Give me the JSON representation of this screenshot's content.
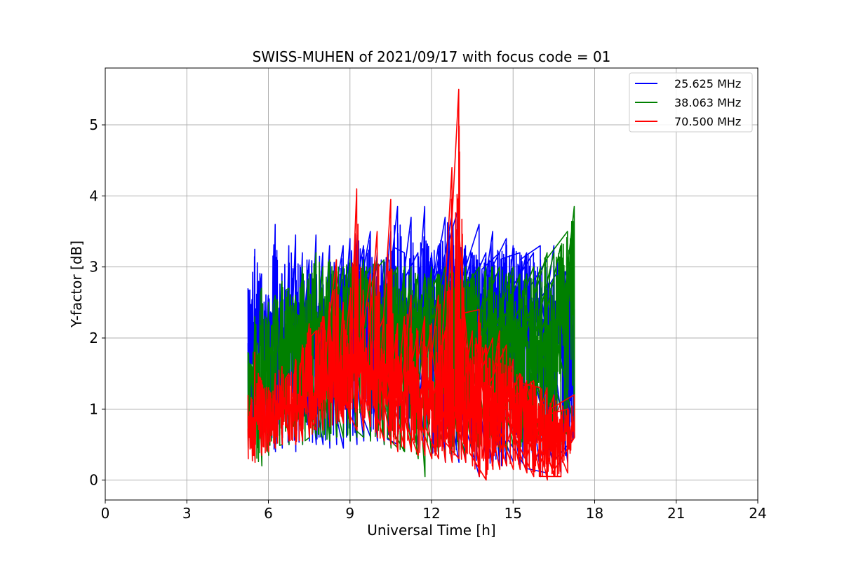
{
  "chart_data": {
    "type": "line",
    "title": "SWISS-MUHEN of 2021/09/17 with focus code = 01",
    "xlabel": "Universal Time [h]",
    "ylabel": "Y-factor [dB]",
    "xlim": [
      0,
      24
    ],
    "ylim": [
      -0.28,
      5.8
    ],
    "x_ticks": [
      0,
      3,
      6,
      9,
      12,
      15,
      18,
      21,
      24
    ],
    "y_ticks": [
      0,
      1,
      2,
      3,
      4,
      5
    ],
    "grid": true,
    "legend_position": "top-right",
    "series": [
      {
        "name": "25.625 MHz",
        "color": "#0000ff",
        "x": [
          5.25,
          5.5,
          5.75,
          6.0,
          6.25,
          6.5,
          6.75,
          7.0,
          7.25,
          7.5,
          7.75,
          8.0,
          8.25,
          8.5,
          8.75,
          9.0,
          9.25,
          9.5,
          9.75,
          10.0,
          10.25,
          10.5,
          10.75,
          11.0,
          11.25,
          11.5,
          11.75,
          12.0,
          12.25,
          12.5,
          12.75,
          13.0,
          13.25,
          13.5,
          13.75,
          14.0,
          14.25,
          14.5,
          14.75,
          15.0,
          15.25,
          15.5,
          15.75,
          16.0,
          16.25,
          16.5,
          16.75,
          17.0,
          17.25
        ],
        "y_min": [
          0.55,
          0.5,
          0.45,
          0.5,
          0.4,
          0.45,
          0.5,
          0.4,
          0.5,
          0.55,
          0.5,
          0.5,
          0.45,
          0.5,
          0.45,
          0.55,
          0.5,
          0.55,
          0.6,
          0.55,
          0.5,
          0.5,
          0.5,
          0.45,
          0.5,
          0.45,
          0.4,
          0.35,
          0.35,
          0.25,
          0.3,
          0.25,
          0.25,
          0.3,
          0.05,
          0.2,
          0.25,
          0.2,
          0.2,
          0.25,
          0.2,
          0.15,
          0.2,
          0.05,
          0.1,
          0.15,
          0.1,
          0.25,
          0.6
        ],
        "y_max": [
          2.7,
          3.25,
          2.9,
          2.6,
          3.6,
          2.9,
          3.3,
          3.45,
          3.2,
          3.1,
          3.45,
          3.2,
          3.3,
          3.1,
          3.3,
          3.4,
          3.45,
          3.3,
          3.5,
          3.2,
          3.1,
          3.5,
          3.85,
          3.2,
          3.7,
          3.2,
          3.85,
          3.2,
          3.3,
          3.7,
          3.75,
          3.85,
          3.3,
          3.2,
          3.6,
          3.2,
          3.5,
          3.2,
          3.4,
          3.3,
          3.2,
          3.2,
          3.2,
          3.3,
          3.1,
          3.3,
          3.0,
          3.0,
          2.4
        ],
        "y_base": [
          2.3,
          2.3,
          2.2,
          2.1,
          2.1,
          2.0,
          2.1,
          2.2,
          2.2,
          2.2,
          2.3,
          2.3,
          2.4,
          2.4,
          2.4,
          2.4,
          2.5,
          2.5,
          2.5,
          2.5,
          2.5,
          2.5,
          2.5,
          2.5,
          2.5,
          2.5,
          2.5,
          2.5,
          2.5,
          2.6,
          2.6,
          2.6,
          2.6,
          2.6,
          2.6,
          2.6,
          2.6,
          2.6,
          2.6,
          2.6,
          2.6,
          2.5,
          2.5,
          2.4,
          2.3,
          2.2,
          2.1,
          2.0,
          2.2
        ]
      },
      {
        "name": "38.063 MHz",
        "color": "#008000",
        "x": [
          5.25,
          5.5,
          5.75,
          6.0,
          6.25,
          6.5,
          6.75,
          7.0,
          7.25,
          7.5,
          7.75,
          8.0,
          8.25,
          8.5,
          8.75,
          9.0,
          9.25,
          9.5,
          9.75,
          10.0,
          10.25,
          10.5,
          10.75,
          11.0,
          11.25,
          11.5,
          11.75,
          12.0,
          12.25,
          12.5,
          12.75,
          13.0,
          13.25,
          13.5,
          13.75,
          14.0,
          14.25,
          14.5,
          14.75,
          15.0,
          15.25,
          15.5,
          15.75,
          16.0,
          16.25,
          16.5,
          16.75,
          17.0,
          17.25
        ],
        "y_min": [
          0.45,
          0.3,
          0.2,
          0.35,
          0.45,
          0.5,
          0.5,
          0.55,
          0.5,
          0.6,
          0.6,
          0.6,
          0.55,
          0.6,
          0.6,
          0.55,
          0.6,
          0.6,
          0.55,
          0.6,
          0.5,
          0.45,
          0.45,
          0.4,
          0.45,
          0.3,
          0.05,
          0.3,
          0.35,
          0.35,
          0.35,
          0.4,
          0.35,
          0.35,
          0.4,
          0.45,
          0.45,
          0.4,
          0.4,
          0.45,
          0.45,
          0.5,
          0.4,
          0.45,
          0.4,
          0.45,
          0.5,
          0.6,
          0.7
        ],
        "y_max": [
          1.8,
          2.3,
          2.7,
          2.5,
          2.6,
          2.8,
          2.7,
          2.6,
          3.0,
          2.9,
          3.2,
          3.0,
          3.1,
          3.1,
          3.0,
          3.1,
          3.1,
          3.1,
          3.0,
          3.1,
          3.1,
          3.0,
          3.0,
          3.0,
          3.0,
          2.9,
          2.9,
          3.0,
          2.9,
          3.0,
          3.0,
          3.0,
          3.0,
          2.9,
          3.0,
          3.0,
          3.0,
          3.0,
          2.9,
          3.0,
          2.9,
          2.9,
          3.0,
          3.0,
          3.2,
          3.2,
          3.3,
          3.5,
          3.85
        ],
        "y_base": [
          1.4,
          1.5,
          1.6,
          1.7,
          1.8,
          1.8,
          1.9,
          2.0,
          2.0,
          2.1,
          2.2,
          2.2,
          2.3,
          2.3,
          2.3,
          2.3,
          2.4,
          2.4,
          2.4,
          2.4,
          2.4,
          2.3,
          2.3,
          2.3,
          2.3,
          2.2,
          2.2,
          2.2,
          2.2,
          2.1,
          2.1,
          2.1,
          2.1,
          2.1,
          2.1,
          2.1,
          2.0,
          2.0,
          2.0,
          2.0,
          2.0,
          1.9,
          1.9,
          1.9,
          2.0,
          2.1,
          2.3,
          2.5,
          2.7
        ]
      },
      {
        "name": "70.500 MHz",
        "color": "#ff0000",
        "x": [
          5.25,
          5.5,
          5.75,
          6.0,
          6.25,
          6.5,
          6.75,
          7.0,
          7.25,
          7.5,
          7.75,
          8.0,
          8.25,
          8.5,
          8.75,
          9.0,
          9.25,
          9.5,
          9.75,
          10.0,
          10.25,
          10.5,
          10.75,
          11.0,
          11.25,
          11.5,
          11.75,
          12.0,
          12.25,
          12.5,
          12.75,
          13.0,
          13.25,
          13.5,
          13.75,
          14.0,
          14.25,
          14.5,
          14.75,
          15.0,
          15.25,
          15.5,
          15.75,
          16.0,
          16.25,
          16.5,
          16.75,
          17.0,
          17.25
        ],
        "y_min": [
          0.3,
          0.25,
          0.35,
          0.4,
          0.45,
          0.5,
          0.55,
          0.5,
          0.55,
          0.6,
          0.7,
          0.7,
          0.75,
          0.8,
          0.8,
          0.8,
          0.7,
          0.7,
          0.75,
          0.6,
          0.55,
          0.5,
          0.4,
          0.45,
          0.4,
          0.35,
          0.35,
          0.3,
          0.3,
          0.25,
          0.25,
          0.3,
          0.25,
          0.2,
          0.05,
          0.0,
          0.15,
          0.15,
          0.2,
          0.15,
          0.15,
          0.1,
          0.05,
          0.05,
          0.0,
          0.05,
          0.05,
          0.1,
          0.6
        ],
        "y_max": [
          1.2,
          1.8,
          1.4,
          1.3,
          1.5,
          1.6,
          1.5,
          1.7,
          1.9,
          2.2,
          2.1,
          2.3,
          2.5,
          3.1,
          2.5,
          2.6,
          4.1,
          2.6,
          2.9,
          3.5,
          2.3,
          3.95,
          2.2,
          2.3,
          2.6,
          2.1,
          2.3,
          2.2,
          2.6,
          2.1,
          4.4,
          5.5,
          2.0,
          2.1,
          2.4,
          1.9,
          2.0,
          2.1,
          1.9,
          1.7,
          1.5,
          1.4,
          1.4,
          1.3,
          1.3,
          1.2,
          1.1,
          1.0,
          1.2
        ],
        "y_base": [
          0.8,
          0.8,
          0.85,
          0.9,
          0.95,
          1.0,
          1.0,
          1.05,
          1.1,
          1.15,
          1.2,
          1.25,
          1.3,
          1.35,
          1.4,
          1.45,
          1.5,
          1.5,
          1.5,
          1.45,
          1.4,
          1.35,
          1.3,
          1.25,
          1.2,
          1.15,
          1.1,
          1.05,
          1.0,
          1.0,
          0.95,
          0.95,
          0.95,
          1.0,
          1.05,
          1.1,
          1.15,
          1.2,
          1.2,
          1.1,
          1.0,
          0.9,
          0.85,
          0.8,
          0.75,
          0.7,
          0.65,
          0.6,
          0.8
        ]
      }
    ]
  }
}
